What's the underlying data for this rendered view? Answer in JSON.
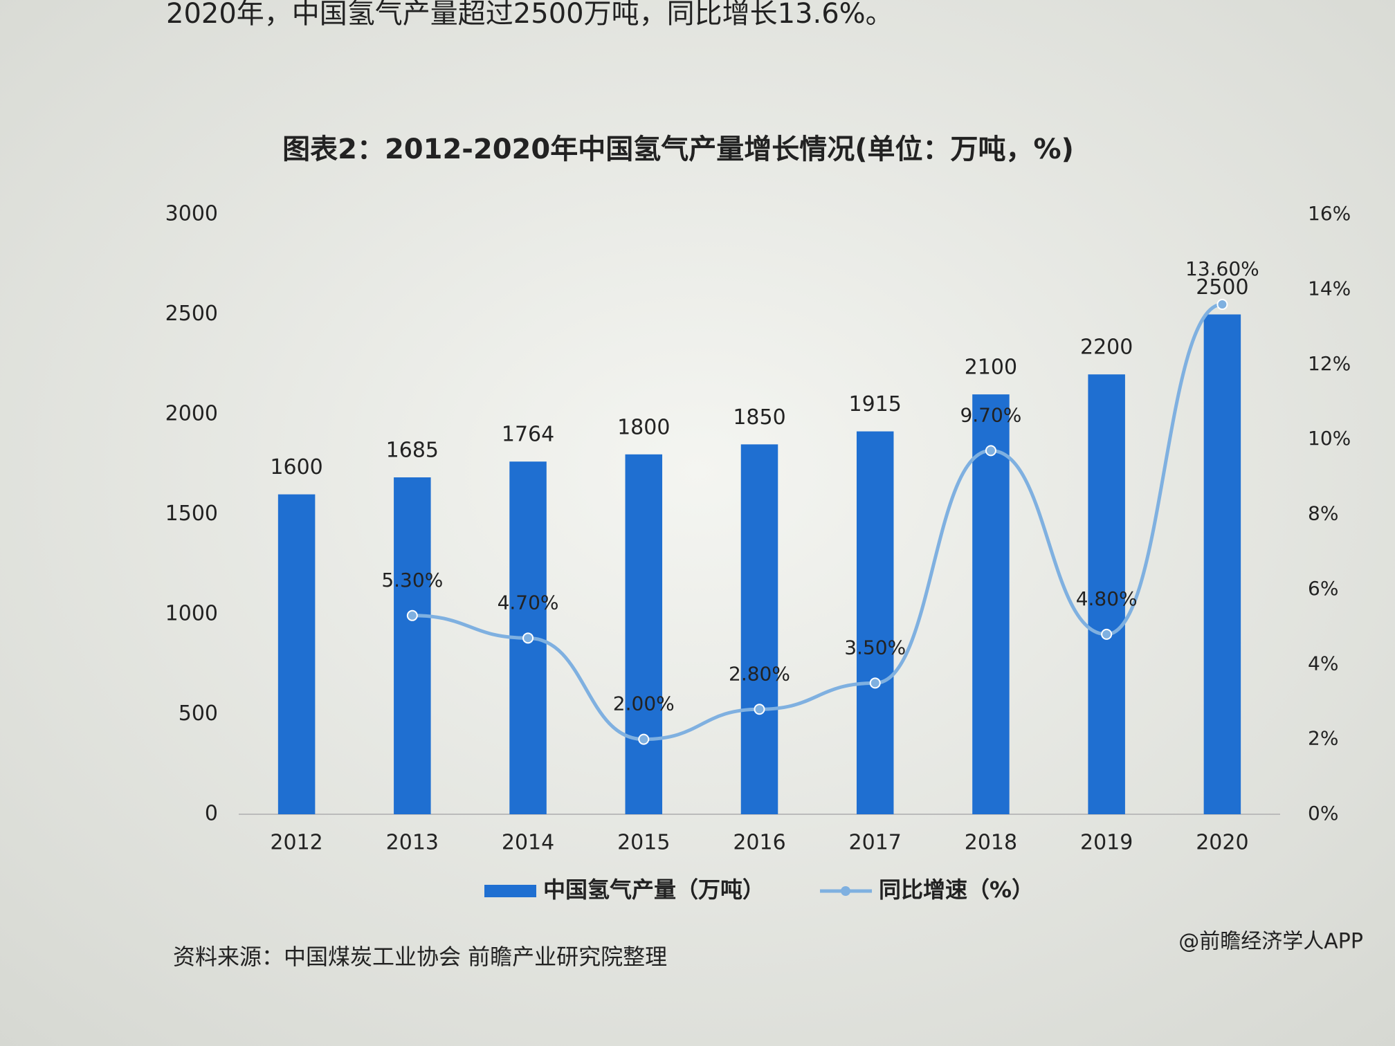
{
  "intro": "2020年，中国氢气产量超过2500万吨，同比增长13.6%。",
  "chart_data": {
    "type": "combo",
    "title": "图表2：2012-2020年中国氢气产量增长情况(单位：万吨，%)",
    "categories": [
      "2012",
      "2013",
      "2014",
      "2015",
      "2016",
      "2017",
      "2018",
      "2019",
      "2020"
    ],
    "series": [
      {
        "name": "中国氢气产量（万吨）",
        "type": "bar",
        "color": "#1f6fd1",
        "values": [
          1600,
          1685,
          1764,
          1800,
          1850,
          1915,
          2100,
          2200,
          2500
        ]
      },
      {
        "name": "同比增速（%）",
        "type": "line",
        "axis": "y2",
        "color": "#7fb0e0",
        "values": [
          null,
          5.3,
          4.7,
          2.0,
          2.8,
          3.5,
          9.7,
          4.8,
          13.6
        ],
        "value_labels": [
          null,
          "5.30%",
          "4.70%",
          "2.00%",
          "2.80%",
          "3.50%",
          "9.70%",
          "4.80%",
          "13.60%"
        ]
      }
    ],
    "ylim": [
      0,
      3000
    ],
    "yticks": [
      0,
      500,
      1000,
      1500,
      2000,
      2500,
      3000
    ],
    "y2lim": [
      0,
      16
    ],
    "y2ticks": [
      {
        "value": 0,
        "label": "0%"
      },
      {
        "value": 2,
        "label": "2%"
      },
      {
        "value": 4,
        "label": "4%"
      },
      {
        "value": 6,
        "label": "6%"
      },
      {
        "value": 8,
        "label": "8%"
      },
      {
        "value": 10,
        "label": "10%"
      },
      {
        "value": 12,
        "label": "12%"
      },
      {
        "value": 14,
        "label": "14%"
      },
      {
        "value": 16,
        "label": "16%"
      }
    ],
    "legend": "bottom",
    "source": "资料来源：中国煤炭工业协会 前瞻产业研究院整理",
    "watermark": "@前瞻经济学人APP"
  }
}
